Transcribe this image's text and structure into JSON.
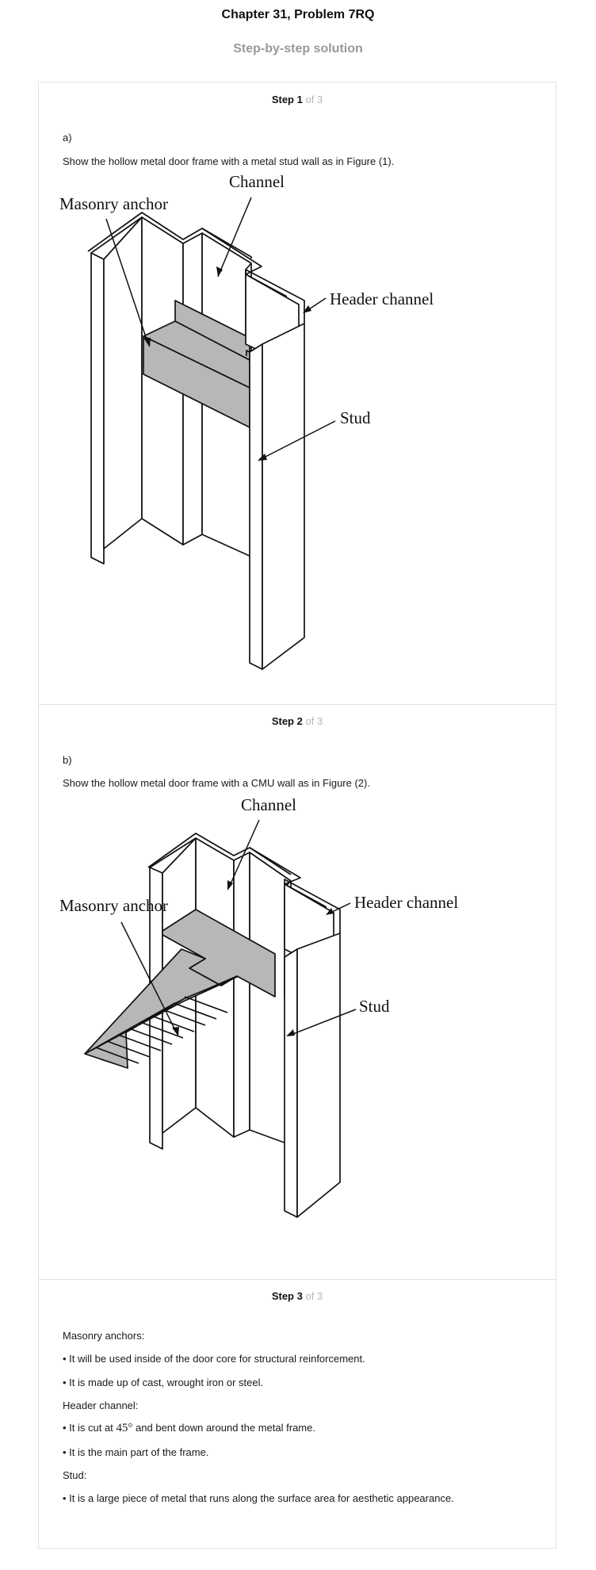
{
  "header": {
    "title": "Chapter 31, Problem 7RQ",
    "subtitle": "Step-by-step solution"
  },
  "steps": [
    {
      "label": "Step 1",
      "of": "of 3",
      "part": "a)",
      "text": "Show the hollow metal door frame with a metal stud wall as in Figure (1).",
      "figure": {
        "labels": {
          "channel": "Channel",
          "masonry_anchor": "Masonry anchor",
          "header_channel": "Header channel",
          "stud": "Stud"
        }
      }
    },
    {
      "label": "Step 2",
      "of": "of 3",
      "part": "b)",
      "text": "Show the hollow metal door frame with a CMU wall as in Figure (2).",
      "figure": {
        "labels": {
          "channel": "Channel",
          "masonry_anchor": "Masonry anchor",
          "header_channel": "Header channel",
          "stud": "Stud"
        }
      }
    },
    {
      "label": "Step 3",
      "of": "of 3",
      "lines": {
        "masonry_heading": "Masonry anchors:",
        "masonry_1": "• It will be used inside of the door core for structural reinforcement.",
        "masonry_2": "• It is made up of cast, wrought iron or steel.",
        "header_heading": "Header channel:",
        "header_1_prefix": "• It is cut at",
        "header_1_math": "45°",
        "header_1_suffix": "and bent down around the metal frame.",
        "header_2": "• It is the main part of the frame.",
        "stud_heading": "Stud:",
        "stud_1": "• It is a large piece of metal that runs along the surface area for aesthetic appearance."
      }
    }
  ]
}
